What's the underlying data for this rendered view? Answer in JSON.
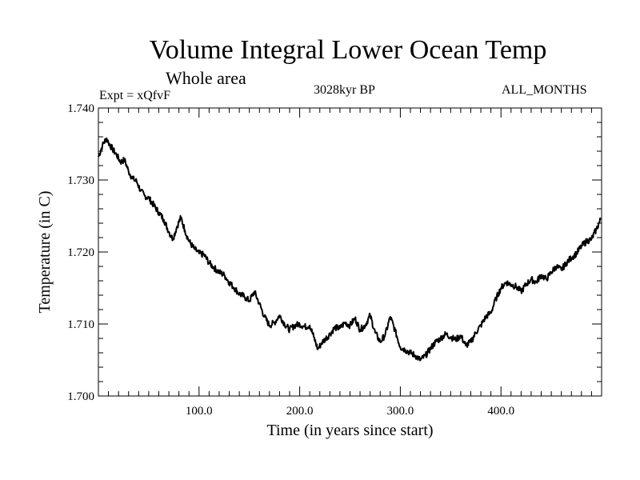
{
  "header": {
    "title": "Volume Integral Lower Ocean Temp",
    "subtitle": "Whole area",
    "experiment": "Expt = xQfvF",
    "period": "3028kyr BP",
    "months": "ALL_MONTHS"
  },
  "chart_data": {
    "type": "line",
    "title": "Volume Integral Lower Ocean Temp",
    "xlabel": "Time (in years since start)",
    "ylabel": "Temperature (in C)",
    "xlim": [
      0,
      500
    ],
    "ylim": [
      1.7,
      1.74
    ],
    "x_ticks": [
      100,
      200,
      300,
      400
    ],
    "x_tick_labels": [
      "100.0",
      "200.0",
      "300.0",
      "400.0"
    ],
    "y_ticks": [
      1.7,
      1.71,
      1.72,
      1.73,
      1.74
    ],
    "y_tick_labels": [
      "1.700",
      "1.710",
      "1.720",
      "1.730",
      "1.740"
    ],
    "grid": false,
    "series": [
      {
        "name": "Volume Integral Lower Ocean Temp",
        "color": "#000000",
        "x": [
          0,
          4,
          8,
          10,
          14,
          18,
          22,
          26,
          30,
          34,
          38,
          42,
          46,
          50,
          55,
          60,
          65,
          70,
          74,
          78,
          82,
          86,
          90,
          95,
          100,
          105,
          110,
          115,
          120,
          125,
          130,
          135,
          140,
          145,
          150,
          155,
          160,
          165,
          170,
          175,
          180,
          185,
          190,
          195,
          200,
          205,
          210,
          214,
          218,
          222,
          226,
          230,
          235,
          240,
          245,
          250,
          255,
          260,
          265,
          270,
          275,
          280,
          285,
          290,
          295,
          300,
          305,
          310,
          315,
          320,
          325,
          330,
          335,
          340,
          345,
          350,
          355,
          360,
          365,
          370,
          375,
          380,
          385,
          390,
          395,
          400,
          405,
          410,
          415,
          420,
          425,
          430,
          435,
          440,
          445,
          450,
          455,
          460,
          465,
          470,
          475,
          480,
          485,
          490,
          495,
          499
        ],
        "values": [
          1.7332,
          1.7348,
          1.7358,
          1.7352,
          1.7343,
          1.7335,
          1.7325,
          1.7328,
          1.7312,
          1.7302,
          1.7298,
          1.7285,
          1.7278,
          1.7275,
          1.7265,
          1.7255,
          1.7245,
          1.7228,
          1.7218,
          1.7235,
          1.7248,
          1.723,
          1.7215,
          1.7205,
          1.7198,
          1.7196,
          1.7185,
          1.7178,
          1.7172,
          1.7168,
          1.7158,
          1.715,
          1.7142,
          1.7138,
          1.7132,
          1.7145,
          1.7128,
          1.711,
          1.7098,
          1.7102,
          1.7112,
          1.71,
          1.7092,
          1.7098,
          1.71,
          1.7096,
          1.7098,
          1.7082,
          1.7065,
          1.7074,
          1.708,
          1.7086,
          1.7095,
          1.7094,
          1.7102,
          1.7098,
          1.7108,
          1.7092,
          1.7098,
          1.7112,
          1.7088,
          1.7075,
          1.7085,
          1.711,
          1.709,
          1.7068,
          1.7064,
          1.706,
          1.7056,
          1.705,
          1.7056,
          1.7066,
          1.7075,
          1.708,
          1.7086,
          1.7082,
          1.7078,
          1.7084,
          1.707,
          1.7075,
          1.7088,
          1.7098,
          1.711,
          1.7116,
          1.7135,
          1.715,
          1.7158,
          1.7155,
          1.7152,
          1.7145,
          1.7155,
          1.7162,
          1.7158,
          1.7168,
          1.7162,
          1.7172,
          1.718,
          1.7175,
          1.7185,
          1.7192,
          1.7198,
          1.7208,
          1.7215,
          1.7218,
          1.7232,
          1.7245
        ]
      }
    ]
  }
}
